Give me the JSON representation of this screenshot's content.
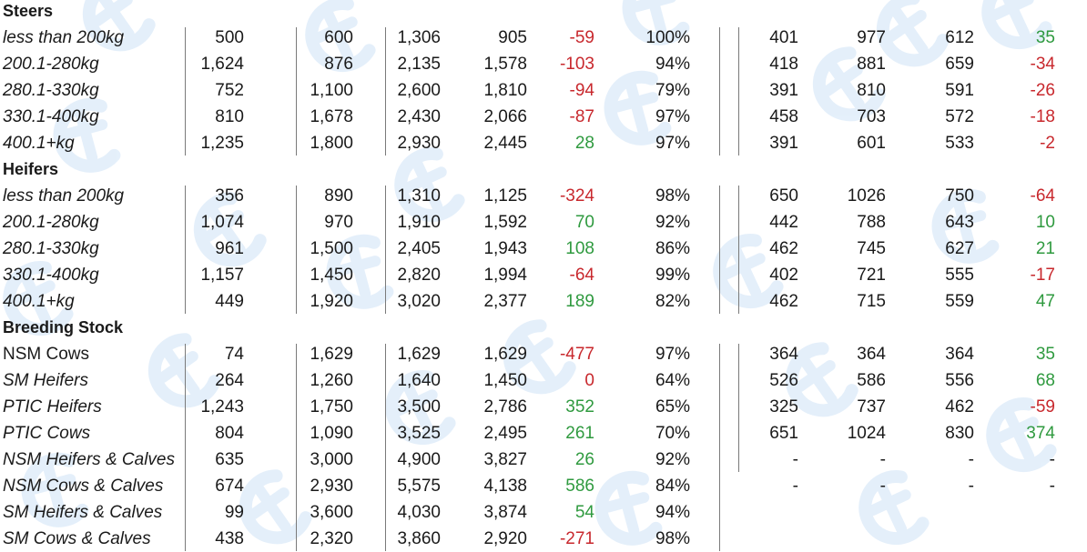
{
  "watermark": {
    "icon": "brand-logo-watermark",
    "color": "#cfe3f7"
  },
  "colors": {
    "negative": "#c8282d",
    "positive": "#2f9a3f",
    "text": "#1a1a1a"
  },
  "sections": [
    {
      "title": "Steers",
      "rows": [
        {
          "label": "less than 200kg",
          "head": "500",
          "min": "600",
          "max": "1,306",
          "avg": "905",
          "chg": "-59",
          "pct": "100%",
          "r1": "401",
          "r2": "977",
          "r3": "612",
          "r4": "35"
        },
        {
          "label": "200.1-280kg",
          "head": "1,624",
          "min": "876",
          "max": "2,135",
          "avg": "1,578",
          "chg": "-103",
          "pct": "94%",
          "r1": "418",
          "r2": "881",
          "r3": "659",
          "r4": "-34"
        },
        {
          "label": "280.1-330kg",
          "head": "752",
          "min": "1,100",
          "max": "2,600",
          "avg": "1,810",
          "chg": "-94",
          "pct": "79%",
          "r1": "391",
          "r2": "810",
          "r3": "591",
          "r4": "-26"
        },
        {
          "label": "330.1-400kg",
          "head": "810",
          "min": "1,678",
          "max": "2,430",
          "avg": "2,066",
          "chg": "-87",
          "pct": "97%",
          "r1": "458",
          "r2": "703",
          "r3": "572",
          "r4": "-18"
        },
        {
          "label": "400.1+kg",
          "head": "1,235",
          "min": "1,800",
          "max": "2,930",
          "avg": "2,445",
          "chg": "28",
          "pct": "97%",
          "r1": "391",
          "r2": "601",
          "r3": "533",
          "r4": "-2"
        }
      ]
    },
    {
      "title": "Heifers",
      "rows": [
        {
          "label": "less than 200kg",
          "head": "356",
          "min": "890",
          "max": "1,310",
          "avg": "1,125",
          "chg": "-324",
          "pct": "98%",
          "r1": "650",
          "r2": "1026",
          "r3": "750",
          "r4": "-64"
        },
        {
          "label": "200.1-280kg",
          "head": "1,074",
          "min": "970",
          "max": "1,910",
          "avg": "1,592",
          "chg": "70",
          "pct": "92%",
          "r1": "442",
          "r2": "788",
          "r3": "643",
          "r4": "10"
        },
        {
          "label": "280.1-330kg",
          "head": "961",
          "min": "1,500",
          "max": "2,405",
          "avg": "1,943",
          "chg": "108",
          "pct": "86%",
          "r1": "462",
          "r2": "745",
          "r3": "627",
          "r4": "21"
        },
        {
          "label": "330.1-400kg",
          "head": "1,157",
          "min": "1,450",
          "max": "2,820",
          "avg": "1,994",
          "chg": "-64",
          "pct": "99%",
          "r1": "402",
          "r2": "721",
          "r3": "555",
          "r4": "-17"
        },
        {
          "label": "400.1+kg",
          "head": "449",
          "min": "1,920",
          "max": "3,020",
          "avg": "2,377",
          "chg": "189",
          "pct": "82%",
          "r1": "462",
          "r2": "715",
          "r3": "559",
          "r4": "47"
        }
      ]
    },
    {
      "title": "Breeding Stock",
      "rows": [
        {
          "label": "NSM Cows",
          "upright": true,
          "head": "74",
          "min": "1,629",
          "max": "1,629",
          "avg": "1,629",
          "chg": "-477",
          "pct": "97%",
          "r1": "364",
          "r2": "364",
          "r3": "364",
          "r4": "35"
        },
        {
          "label": "SM Heifers",
          "head": "264",
          "min": "1,260",
          "max": "1,640",
          "avg": "1,450",
          "chg": "0",
          "chgColor": "negative",
          "pct": "64%",
          "r1": "526",
          "r2": "586",
          "r3": "556",
          "r4": "68"
        },
        {
          "label": "PTIC Heifers",
          "head": "1,243",
          "min": "1,750",
          "max": "3,500",
          "avg": "2,786",
          "chg": "352",
          "pct": "65%",
          "r1": "325",
          "r2": "737",
          "r3": "462",
          "r4": "-59"
        },
        {
          "label": "PTIC Cows",
          "head": "804",
          "min": "1,090",
          "max": "3,525",
          "avg": "2,495",
          "chg": "261",
          "pct": "70%",
          "r1": "651",
          "r2": "1024",
          "r3": "830",
          "r4": "374"
        },
        {
          "label": "NSM Heifers & Calves",
          "head": "635",
          "min": "3,000",
          "max": "4,900",
          "avg": "3,827",
          "chg": "26",
          "pct": "92%",
          "r1": "-",
          "r2": "-",
          "r3": "-",
          "r4": "-",
          "r4Color": "neutral"
        },
        {
          "label": "NSM Cows & Calves",
          "head": "674",
          "min": "2,930",
          "max": "5,575",
          "avg": "4,138",
          "chg": "586",
          "pct": "84%",
          "r1": "-",
          "r2": "-",
          "r3": "-",
          "r4": "-",
          "r4Color": "neutral"
        },
        {
          "label": "SM Heifers & Calves",
          "head": "99",
          "min": "3,600",
          "max": "4,030",
          "avg": "3,874",
          "chg": "54",
          "pct": "94%",
          "r1": "",
          "r2": "",
          "r3": "",
          "r4": ""
        },
        {
          "label": "SM Cows & Calves",
          "head": "438",
          "min": "2,320",
          "max": "3,860",
          "avg": "2,920",
          "chg": "-271",
          "pct": "98%",
          "r1": "",
          "r2": "",
          "r3": "",
          "r4": ""
        }
      ]
    }
  ]
}
